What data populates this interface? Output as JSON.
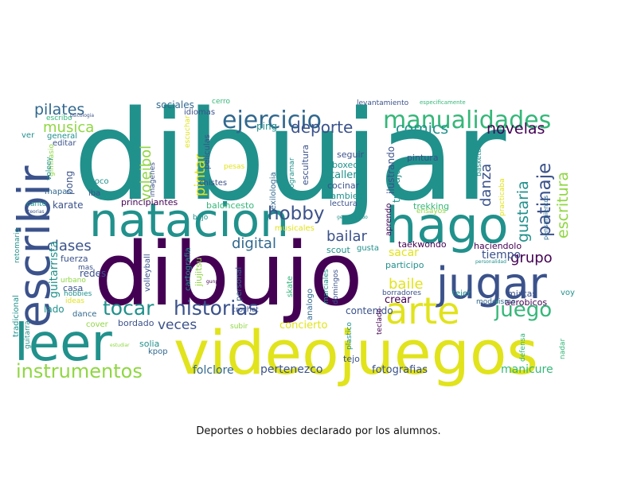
{
  "caption": "Deportes o hobbies declarado por los alumnos.",
  "colors": {
    "background": "#ffffff",
    "purple": "#440154",
    "indigo": "#3b528b",
    "blue": "#31688e",
    "teal": "#21918c",
    "green": "#35b779",
    "lime": "#90d743",
    "yellow": "#e1e31c",
    "text": "#111111"
  },
  "words": [
    {
      "text": "dibujar",
      "c": "teal"
    },
    {
      "text": "dibujo",
      "c": "purple"
    },
    {
      "text": "videojuegos",
      "c": "yellow"
    },
    {
      "text": "leer",
      "c": "teal"
    },
    {
      "text": "natacion",
      "c": "teal"
    },
    {
      "text": "escribir",
      "c": "indigo"
    },
    {
      "text": "jugar",
      "c": "indigo"
    },
    {
      "text": "hago",
      "c": "teal"
    },
    {
      "text": "arte",
      "c": "yellow"
    },
    {
      "text": "ejercicio",
      "c": "blue"
    },
    {
      "text": "manualidades",
      "c": "green"
    },
    {
      "text": "instrumentos",
      "c": "lime"
    },
    {
      "text": "tocar",
      "c": "teal"
    },
    {
      "text": "historias",
      "c": "indigo"
    },
    {
      "text": "juego",
      "c": "green"
    },
    {
      "text": "hobby",
      "c": "indigo"
    },
    {
      "text": "pilates",
      "c": "blue"
    },
    {
      "text": "musica",
      "c": "lime"
    },
    {
      "text": "deporte",
      "c": "indigo"
    },
    {
      "text": "comics",
      "c": "teal"
    },
    {
      "text": "novelas",
      "c": "purple"
    },
    {
      "text": "patinaje",
      "c": "indigo"
    },
    {
      "text": "escritura",
      "c": "lime"
    },
    {
      "text": "gustaria",
      "c": "teal"
    },
    {
      "text": "danza",
      "c": "indigo"
    },
    {
      "text": "voleibol",
      "c": "lime"
    },
    {
      "text": "pintar",
      "c": "yellow"
    },
    {
      "text": "digital",
      "c": "blue"
    },
    {
      "text": "bailar",
      "c": "indigo"
    },
    {
      "text": "baile",
      "c": "yellow"
    },
    {
      "text": "clases",
      "c": "indigo"
    },
    {
      "text": "grupo",
      "c": "purple"
    },
    {
      "text": "veces",
      "c": "indigo"
    },
    {
      "text": "folclore",
      "c": "blue"
    },
    {
      "text": "pertenezco",
      "c": "indigo"
    },
    {
      "text": "fotografias",
      "c": "indigo"
    },
    {
      "text": "manicure",
      "c": "green"
    },
    {
      "text": "sacar",
      "c": "yellow"
    },
    {
      "text": "tiempo",
      "c": "indigo"
    },
    {
      "text": "sociales",
      "c": "blue"
    },
    {
      "text": "ping",
      "c": "teal"
    },
    {
      "text": "pong",
      "c": "indigo"
    },
    {
      "text": "karate",
      "c": "indigo"
    },
    {
      "text": "mapas",
      "c": "blue"
    },
    {
      "text": "guitarrista",
      "c": "teal"
    },
    {
      "text": "redes",
      "c": "indigo"
    },
    {
      "text": "fuerza",
      "c": "indigo"
    },
    {
      "text": "casa",
      "c": "indigo"
    },
    {
      "text": "lado",
      "c": "teal"
    },
    {
      "text": "dance",
      "c": "blue"
    },
    {
      "text": "bordado",
      "c": "indigo"
    },
    {
      "text": "cover",
      "c": "lime"
    },
    {
      "text": "solia",
      "c": "teal"
    },
    {
      "text": "kpop",
      "c": "blue"
    },
    {
      "text": "concierto",
      "c": "yellow"
    },
    {
      "text": "contenido",
      "c": "indigo"
    },
    {
      "text": "crear",
      "c": "purple"
    },
    {
      "text": "tejo",
      "c": "indigo"
    },
    {
      "text": "taller",
      "c": "teal"
    },
    {
      "text": "boxeo",
      "c": "teal"
    },
    {
      "text": "seguir",
      "c": "indigo"
    },
    {
      "text": "cocinar",
      "c": "indigo"
    },
    {
      "text": "tambien",
      "c": "teal"
    },
    {
      "text": "lectura",
      "c": "indigo"
    },
    {
      "text": "trabajo",
      "c": "teal"
    },
    {
      "text": "pintura",
      "c": "indigo"
    },
    {
      "text": "ilustrando",
      "c": "indigo"
    },
    {
      "text": "aprendo",
      "c": "purple"
    },
    {
      "text": "trekking",
      "c": "green"
    },
    {
      "text": "ensayos",
      "c": "lime"
    },
    {
      "text": "taekwondo",
      "c": "purple"
    },
    {
      "text": "haciendolo",
      "c": "purple"
    },
    {
      "text": "participo",
      "c": "teal"
    },
    {
      "text": "scout",
      "c": "teal"
    },
    {
      "text": "gusta",
      "c": "teal"
    },
    {
      "text": "baloncesto",
      "c": "green"
    },
    {
      "text": "principiantes",
      "c": "purple"
    },
    {
      "text": "escultura",
      "c": "indigo"
    },
    {
      "text": "vexilologia",
      "c": "blue"
    },
    {
      "text": "programar",
      "c": "teal"
    },
    {
      "text": "levantamiento",
      "c": "indigo"
    },
    {
      "text": "especificamente",
      "c": "green"
    },
    {
      "text": "basketball",
      "c": "teal"
    },
    {
      "text": "practicaba",
      "c": "yellow"
    },
    {
      "text": "pensamientos",
      "c": "blue"
    },
    {
      "text": "voy",
      "c": "teal"
    },
    {
      "text": "mixtas",
      "c": "indigo"
    },
    {
      "text": "aerobicos",
      "c": "purple"
    },
    {
      "text": "modelismo",
      "c": "blue"
    },
    {
      "text": "tejer",
      "c": "teal"
    },
    {
      "text": "borradores",
      "c": "indigo"
    },
    {
      "text": "teclado",
      "c": "purple"
    },
    {
      "text": "plastico",
      "c": "teal"
    },
    {
      "text": "defensa",
      "c": "green"
    },
    {
      "text": "personal",
      "c": "blue"
    },
    {
      "text": "nadar",
      "c": "green"
    },
    {
      "text": "personalidad",
      "c": "teal"
    },
    {
      "text": "generalizado",
      "c": "teal"
    },
    {
      "text": "idiomas",
      "c": "indigo"
    },
    {
      "text": "cerro",
      "c": "green"
    },
    {
      "text": "toco",
      "c": "teal"
    },
    {
      "text": "iba",
      "c": "indigo"
    },
    {
      "text": "escuchar",
      "c": "yellow"
    },
    {
      "text": "peliculas",
      "c": "indigo"
    },
    {
      "text": "imagenes",
      "c": "indigo"
    },
    {
      "text": "chistes",
      "c": "indigo"
    },
    {
      "text": "pesas",
      "c": "yellow"
    },
    {
      "text": "bajo",
      "c": "teal"
    },
    {
      "text": "musicales",
      "c": "yellow"
    },
    {
      "text": "jiujitsu",
      "c": "lime"
    },
    {
      "text": "cartografia",
      "c": "teal"
    },
    {
      "text": "volleyball",
      "c": "indigo"
    },
    {
      "text": "gunpla",
      "c": "purple"
    },
    {
      "text": "skate",
      "c": "green"
    },
    {
      "text": "analogo",
      "c": "blue"
    },
    {
      "text": "marciales",
      "c": "teal"
    },
    {
      "text": "domingos",
      "c": "indigo"
    },
    {
      "text": "crochet",
      "c": "indigo"
    },
    {
      "text": "subir",
      "c": "lime"
    },
    {
      "text": "estudiar",
      "c": "lime"
    },
    {
      "text": "ideas",
      "c": "yellow"
    },
    {
      "text": "hobbies",
      "c": "teal"
    },
    {
      "text": "urbano",
      "c": "lime"
    },
    {
      "text": "mas",
      "c": "indigo"
    },
    {
      "text": "tradicional",
      "c": "teal"
    },
    {
      "text": "guitarra",
      "c": "teal"
    },
    {
      "text": "retomario",
      "c": "teal"
    },
    {
      "text": "teorias",
      "c": "indigo"
    },
    {
      "text": "canto",
      "c": "teal"
    },
    {
      "text": "gimnasio",
      "c": "lime"
    },
    {
      "text": "voleey",
      "c": "teal"
    },
    {
      "text": "escribo",
      "c": "green"
    },
    {
      "text": "psicologia",
      "c": "indigo"
    },
    {
      "text": "editar",
      "c": "indigo"
    },
    {
      "text": "general",
      "c": "teal"
    },
    {
      "text": "ver",
      "c": "teal"
    }
  ]
}
